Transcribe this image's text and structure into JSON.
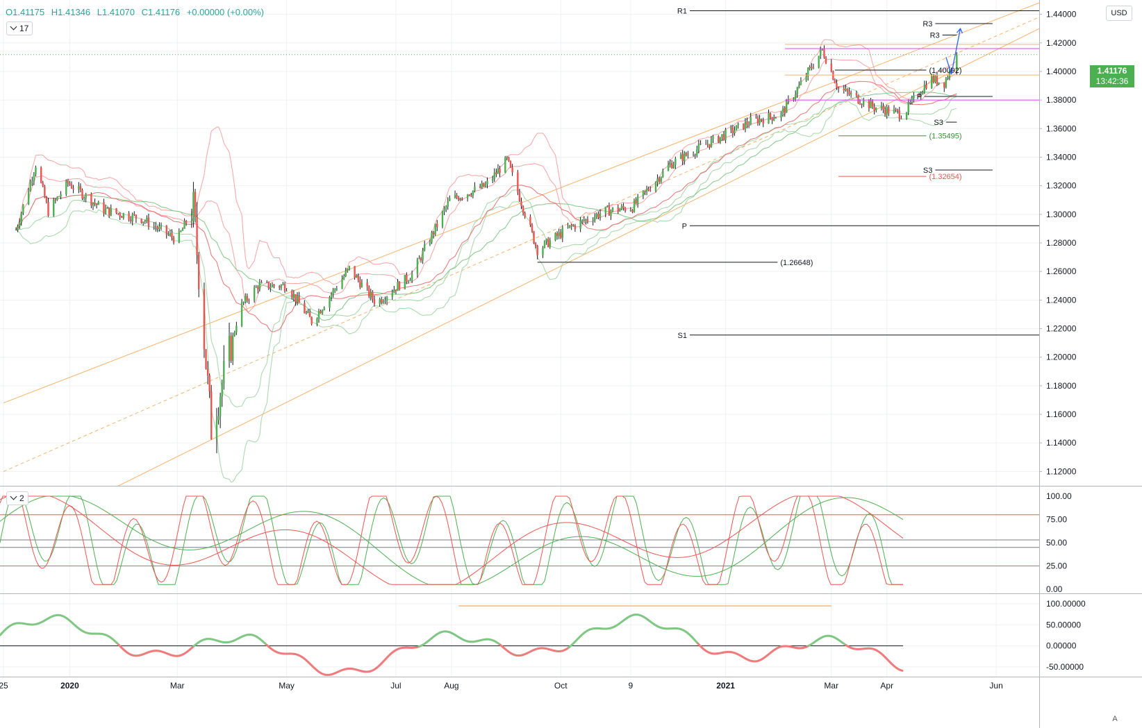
{
  "header": {
    "open": "O1.41175",
    "high": "H1.41346",
    "low": "L1.41070",
    "close": "C1.41176",
    "change": "+0.00000 (+0.00%)"
  },
  "badges": {
    "main_indicator_count": "17",
    "stoch_indicator_count": "2"
  },
  "currency_button": "USD",
  "auto_button": "A",
  "last_price": {
    "value": "1.41176",
    "countdown": "13:42:36"
  },
  "colors": {
    "up": "#4caf50",
    "down": "#ef5350",
    "channel": "#f7b26a",
    "band_red": "#f5a3a3",
    "band_green": "#a5d6a7",
    "magenta": "#e040fb",
    "forecast": "#2962ff"
  },
  "chart_data": [
    {
      "type": "candlestick",
      "title": "",
      "ylim": [
        1.11,
        1.45
      ],
      "yticks": [
        "1.44000",
        "1.42000",
        "1.40000",
        "1.38000",
        "1.36000",
        "1.34000",
        "1.32000",
        "1.30000",
        "1.28000",
        "1.26000",
        "1.24000",
        "1.22000",
        "1.20000",
        "1.18000",
        "1.16000",
        "1.14000",
        "1.12000"
      ],
      "xticks": [
        "25",
        "2020",
        "Mar",
        "May",
        "Jul",
        "Aug",
        "Oct",
        "9",
        "2021",
        "Mar",
        "Apr",
        "Jun"
      ],
      "price_path": [
        [
          "2019-12-01",
          1.285
        ],
        [
          "2019-12-13",
          1.335
        ],
        [
          "2019-12-20",
          1.302
        ],
        [
          "2019-12-31",
          1.322
        ],
        [
          "2020-01-20",
          1.303
        ],
        [
          "2020-02-10",
          1.297
        ],
        [
          "2020-03-01",
          1.282
        ],
        [
          "2020-03-10",
          1.305
        ],
        [
          "2020-03-20",
          1.15
        ],
        [
          "2020-04-05",
          1.235
        ],
        [
          "2020-04-15",
          1.25
        ],
        [
          "2020-05-01",
          1.25
        ],
        [
          "2020-05-15",
          1.225
        ],
        [
          "2020-06-05",
          1.262
        ],
        [
          "2020-06-20",
          1.238
        ],
        [
          "2020-07-10",
          1.258
        ],
        [
          "2020-07-31",
          1.31
        ],
        [
          "2020-08-20",
          1.32
        ],
        [
          "2020-09-01",
          1.338
        ],
        [
          "2020-09-18",
          1.275
        ],
        [
          "2020-10-05",
          1.29
        ],
        [
          "2020-10-25",
          1.302
        ],
        [
          "2020-11-10",
          1.305
        ],
        [
          "2020-12-01",
          1.335
        ],
        [
          "2020-12-15",
          1.345
        ],
        [
          "2021-01-15",
          1.365
        ],
        [
          "2021-02-01",
          1.37
        ],
        [
          "2021-02-24",
          1.415
        ],
        [
          "2021-03-05",
          1.388
        ],
        [
          "2021-03-25",
          1.375
        ],
        [
          "2021-04-10",
          1.37
        ],
        [
          "2021-04-25",
          1.395
        ],
        [
          "2021-05-03",
          1.392
        ],
        [
          "2021-05-10",
          1.412
        ]
      ],
      "channel": [
        {
          "name": "",
          "start": [
            "2019-11-25",
            1.168
          ],
          "end": [
            "2021-06-25",
            1.448
          ]
        },
        {
          "name": "",
          "start": [
            "2019-11-25",
            1.07
          ],
          "end": [
            "2021-06-25",
            1.43
          ]
        },
        {
          "name": "",
          "start": [
            "2019-11-25",
            1.12
          ],
          "end": [
            "2021-06-25",
            1.438
          ],
          "dashed": true
        }
      ],
      "levels": [
        {
          "label": "R1",
          "price": 1.4425,
          "from": "2020-12-12",
          "to": "2021-06-25"
        },
        {
          "label": "P",
          "price": 1.292,
          "from": "2020-12-12",
          "to": "2021-06-25"
        },
        {
          "label": "S1",
          "price": 1.2155,
          "from": "2020-12-12",
          "to": "2021-06-25"
        },
        {
          "label": "R3",
          "price": 1.4335,
          "from": "2021-04-28",
          "to": "2021-05-30"
        },
        {
          "label": "R3",
          "price": 1.4255,
          "from": "2021-05-02",
          "to": "2021-05-10"
        },
        {
          "label": "P",
          "price": 1.3825,
          "from": "2021-04-22",
          "to": "2021-05-30"
        },
        {
          "label": "S3",
          "price": 1.3645,
          "from": "2021-05-04",
          "to": "2021-05-10"
        },
        {
          "label": "S3",
          "price": 1.331,
          "from": "2021-04-28",
          "to": "2021-05-30"
        }
      ],
      "annotations": [
        {
          "label": "(1.26648)",
          "price": 1.26648,
          "from": "2020-09-18",
          "to": "2021-01-30"
        },
        {
          "label": "(1.40092)",
          "price": 1.40092,
          "from": "2021-03-03",
          "to": "2021-04-23"
        },
        {
          "label": "(1.35495)",
          "price": 1.35495,
          "from": "2021-03-05",
          "to": "2021-04-23"
        },
        {
          "label": "(1.32654)",
          "price": 1.32654,
          "from": "2021-03-05",
          "to": "2021-04-23"
        }
      ],
      "reference_lines": [
        {
          "price": 1.419,
          "color": "orange"
        },
        {
          "price": 1.3975,
          "color": "orange"
        },
        {
          "price": 1.416,
          "color": "magenta"
        },
        {
          "price": 1.38,
          "color": "magenta"
        }
      ],
      "forecast_path": [
        [
          "2021-05-04",
          1.41
        ],
        [
          "2021-05-07",
          1.398
        ],
        [
          "2021-05-12",
          1.43
        ]
      ]
    },
    {
      "type": "line",
      "title": "",
      "ylim": [
        0,
        100
      ],
      "yticks": [
        "100.00",
        "75.00",
        "50.00",
        "25.00",
        "0.00"
      ],
      "hlines": [
        80,
        53,
        45,
        25
      ]
    },
    {
      "type": "line",
      "title": "",
      "ylim": [
        -70,
        110
      ],
      "yticks": [
        "100.00000",
        "50.00000",
        "0.00000",
        "-50.00000"
      ],
      "hlines": [
        0
      ],
      "trendline": {
        "from": [
          "2020-08-05",
          95
        ],
        "to": [
          "2021-03-01",
          95
        ]
      }
    }
  ]
}
